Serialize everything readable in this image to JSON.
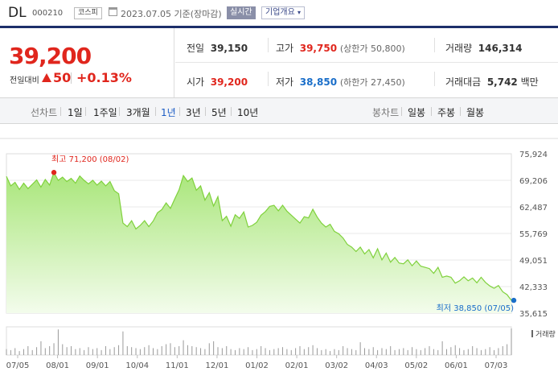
{
  "header": {
    "name": "DL",
    "code": "000210",
    "market": "코스피",
    "date_basis": "2023.07.05 기준(장마감)",
    "realtime_label": "실시간",
    "overview_label": "기업개요"
  },
  "price": {
    "current": "39,200",
    "change_label": "전일대비",
    "change": "50",
    "change_rate": "+0.13%"
  },
  "stats": {
    "prev_close_label": "전일",
    "prev_close": "39,150",
    "high_label": "고가",
    "high": "39,750",
    "upper_limit": "(상한가 50,800)",
    "volume_label": "거래량",
    "volume": "146,314",
    "open_label": "시가",
    "open": "39,200",
    "low_label": "저가",
    "low": "38,850",
    "lower_limit": "(하한가 27,450)",
    "value_label": "거래대금",
    "value": "5,742",
    "value_unit": "백만"
  },
  "periods": {
    "line_chart_label": "선차트",
    "line_items": [
      "1일",
      "1주일",
      "3개월",
      "1년",
      "3년",
      "5년",
      "10년"
    ],
    "active": "1년",
    "candle_chart_label": "봉차트",
    "candle_items": [
      "일봉",
      "주봉",
      "월봉"
    ]
  },
  "colors": {
    "up": "#e0261d",
    "down": "#1a6ec9",
    "line": "#7fd13c",
    "fill_top": "#a9e67a",
    "fill_bottom": "#f3fcec",
    "volume": "#9a9a9a"
  },
  "chart_data": {
    "type": "area",
    "ylim": [
      35615,
      75924
    ],
    "yticks": [
      "75,924",
      "69,206",
      "62,487",
      "55,769",
      "49,051",
      "42,333",
      "35,615"
    ],
    "xticks": [
      "07/05",
      "08/01",
      "09/01",
      "10/04",
      "11/01",
      "12/01",
      "01/02",
      "02/01",
      "03/02",
      "04/03",
      "05/02",
      "06/01",
      "07/03"
    ],
    "max_annotation": "최고 71,200 (08/02)",
    "min_annotation": "최저 38,850 (07/05)",
    "volume_legend": "거래량",
    "series": [
      {
        "values": [
          70200,
          67800,
          68700,
          66900,
          68500,
          67100,
          68200,
          69300,
          67500,
          69400,
          68000,
          71200,
          69200,
          70000,
          68900,
          69700,
          68500,
          70300,
          69200,
          68300,
          69200,
          68000,
          69000,
          67800,
          68900,
          66600,
          65800,
          58400,
          57500,
          59000,
          56900,
          57800,
          59000,
          57500,
          58900,
          61000,
          61800,
          63500,
          62100,
          64500,
          66800,
          70400,
          68900,
          69800,
          66700,
          67800,
          64200,
          66100,
          62700,
          65100,
          59000,
          60100,
          57600,
          60500,
          59600,
          61200,
          57400,
          57800,
          58600,
          60400,
          61300,
          62600,
          62900,
          61500,
          62900,
          61400,
          60400,
          59400,
          58400,
          60000,
          59700,
          61900,
          59900,
          58400,
          57400,
          58100,
          56300,
          55700,
          54600,
          53000,
          52300,
          51200,
          52300,
          50600,
          51700,
          49600,
          51900,
          49100,
          50800,
          48500,
          49700,
          48300,
          48100,
          49100,
          47600,
          48800,
          47500,
          47200,
          46900,
          45700,
          47200,
          44700,
          45000,
          44700,
          43200,
          43800,
          44800,
          43800,
          44500,
          43300,
          44700,
          43400,
          42500,
          41900,
          42600,
          41000,
          40300,
          38850
        ]
      }
    ],
    "volume_values": [
      6,
      5,
      7,
      4,
      6,
      9,
      5,
      8,
      14,
      7,
      9,
      12,
      26,
      11,
      8,
      9,
      6,
      7,
      5,
      8,
      6,
      7,
      5,
      9,
      6,
      8,
      10,
      24,
      9,
      8,
      7,
      6,
      8,
      10,
      7,
      6,
      9,
      11,
      12,
      8,
      9,
      15,
      10,
      9,
      8,
      7,
      6,
      12,
      14,
      8,
      7,
      9,
      6,
      5,
      7,
      6,
      8,
      5,
      6,
      9,
      7,
      5,
      6,
      7,
      8,
      6,
      5,
      7,
      9,
      6,
      8,
      10,
      7,
      5,
      6,
      4,
      6,
      5,
      9,
      7,
      6,
      5,
      13,
      7,
      6,
      8,
      5,
      7,
      6,
      9,
      5,
      6,
      7,
      5,
      8,
      6,
      5,
      7,
      9,
      6,
      5,
      14,
      6,
      8,
      10,
      7,
      5,
      6,
      9,
      7,
      5,
      6,
      8,
      5,
      7,
      9,
      11,
      27
    ]
  }
}
